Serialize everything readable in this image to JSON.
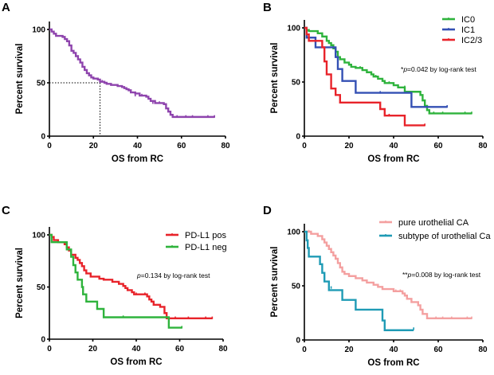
{
  "chart_data": [
    {
      "type": "line",
      "panel": "A",
      "title": "",
      "xlabel": "OS from RC",
      "ylabel": "Percent survival",
      "xlim": [
        0,
        80
      ],
      "ylim": [
        0,
        100
      ],
      "xticks": [
        "0",
        "20",
        "40",
        "60",
        "80"
      ],
      "yticks": [
        "0",
        "50",
        "100"
      ],
      "median_line": {
        "x": 23,
        "y": 50
      },
      "legend": [],
      "annotation": "",
      "series": [
        {
          "name": "All patients",
          "color": "#8e44ad",
          "steps": [
            [
              0,
              100
            ],
            [
              1,
              98
            ],
            [
              2,
              96
            ],
            [
              3,
              94
            ],
            [
              6,
              93
            ],
            [
              7,
              91
            ],
            [
              8,
              89
            ],
            [
              9,
              85
            ],
            [
              10,
              80
            ],
            [
              11,
              78
            ],
            [
              12,
              75
            ],
            [
              13,
              72
            ],
            [
              14,
              69
            ],
            [
              15,
              65
            ],
            [
              16,
              62
            ],
            [
              17,
              59
            ],
            [
              18,
              57
            ],
            [
              19,
              55
            ],
            [
              20,
              54
            ],
            [
              22,
              53
            ],
            [
              23,
              51
            ],
            [
              25,
              50
            ],
            [
              26,
              49
            ],
            [
              28,
              48
            ],
            [
              31,
              47
            ],
            [
              33,
              46
            ],
            [
              34,
              45
            ],
            [
              35,
              44
            ],
            [
              36,
              43
            ],
            [
              37,
              41
            ],
            [
              39,
              40
            ],
            [
              41,
              38
            ],
            [
              44,
              37
            ],
            [
              45,
              35
            ],
            [
              46,
              33
            ],
            [
              48,
              31
            ],
            [
              52,
              30
            ],
            [
              53,
              26
            ],
            [
              54,
              23
            ],
            [
              55,
              20
            ],
            [
              56,
              18
            ]
          ],
          "end": 75,
          "censors": [
            [
              24,
              51
            ],
            [
              31,
              47
            ],
            [
              39,
              38
            ],
            [
              42,
              38
            ],
            [
              47,
              31
            ],
            [
              50,
              31
            ],
            [
              58,
              18
            ],
            [
              62,
              18
            ],
            [
              65,
              18
            ],
            [
              72,
              18
            ],
            [
              75,
              18
            ]
          ]
        }
      ]
    },
    {
      "type": "line",
      "panel": "B",
      "xlabel": "OS from RC",
      "ylabel": "Percent survival",
      "xlim": [
        0,
        80
      ],
      "ylim": [
        0,
        100
      ],
      "xticks": [
        "0",
        "20",
        "40",
        "60",
        "80"
      ],
      "yticks": [
        "0",
        "50",
        "100"
      ],
      "legend": [
        {
          "label": "IC0",
          "color": "#2eb33c"
        },
        {
          "label": "IC1",
          "color": "#3450b4"
        },
        {
          "label": "IC2/3",
          "color": "#e8232a"
        }
      ],
      "annotation_prefix": "*",
      "annotation_p": "p",
      "annotation_rest": "=0.042 by log-rank test",
      "series": [
        {
          "name": "IC0",
          "color": "#2eb33c",
          "steps": [
            [
              0,
              100
            ],
            [
              1,
              98
            ],
            [
              2,
              97
            ],
            [
              6,
              95
            ],
            [
              8,
              92
            ],
            [
              10,
              88
            ],
            [
              11,
              86
            ],
            [
              12,
              84
            ],
            [
              13,
              81
            ],
            [
              14,
              78
            ],
            [
              15,
              73
            ],
            [
              16,
              71
            ],
            [
              18,
              68
            ],
            [
              20,
              66
            ],
            [
              21,
              64
            ],
            [
              23,
              63
            ],
            [
              26,
              61
            ],
            [
              28,
              59
            ],
            [
              30,
              57
            ],
            [
              31,
              55
            ],
            [
              33,
              53
            ],
            [
              35,
              51
            ],
            [
              36,
              49
            ],
            [
              40,
              47
            ],
            [
              42,
              45
            ],
            [
              45,
              41
            ],
            [
              52,
              38
            ],
            [
              53,
              33
            ],
            [
              54,
              28
            ],
            [
              55,
              24
            ],
            [
              56,
              21
            ]
          ],
          "end": 75,
          "censors": [
            [
              25,
              63
            ],
            [
              32,
              55
            ],
            [
              38,
              49
            ],
            [
              42,
              45
            ],
            [
              45,
              45
            ],
            [
              58,
              21
            ],
            [
              62,
              21
            ],
            [
              72,
              21
            ],
            [
              75,
              21
            ]
          ]
        },
        {
          "name": "IC1",
          "color": "#3450b4",
          "steps": [
            [
              0,
              100
            ],
            [
              1,
              91
            ],
            [
              5,
              82
            ],
            [
              14,
              73
            ],
            [
              15,
              62
            ],
            [
              17,
              51
            ],
            [
              23,
              40
            ],
            [
              48,
              27
            ]
          ],
          "end": 64,
          "censors": [
            [
              34,
              40
            ],
            [
              64,
              27
            ]
          ]
        },
        {
          "name": "IC2/3",
          "color": "#e8232a",
          "steps": [
            [
              0,
              100
            ],
            [
              1,
              94
            ],
            [
              2,
              88
            ],
            [
              8,
              82
            ],
            [
              9,
              69
            ],
            [
              10,
              57
            ],
            [
              12,
              44
            ],
            [
              14,
              38
            ],
            [
              16,
              31
            ],
            [
              34,
              25
            ],
            [
              36,
              19
            ],
            [
              45,
              10
            ]
          ],
          "end": 54,
          "censors": [
            [
              38,
              19
            ],
            [
              54,
              10
            ]
          ]
        }
      ]
    },
    {
      "type": "line",
      "panel": "C",
      "xlabel": "OS from RC",
      "ylabel": "Percent survival",
      "xlim": [
        0,
        80
      ],
      "ylim": [
        0,
        100
      ],
      "xticks": [
        "0",
        "20",
        "40",
        "60",
        "80"
      ],
      "yticks": [
        "0",
        "50",
        "100"
      ],
      "legend": [
        {
          "label": "PD-L1 pos",
          "color": "#e8232a"
        },
        {
          "label": "PD-L1 neg",
          "color": "#2eb33c"
        }
      ],
      "annotation_prefix": "",
      "annotation_p": "p",
      "annotation_rest": "=0.134 by log-rank test",
      "series": [
        {
          "name": "PD-L1 pos",
          "color": "#e8232a",
          "steps": [
            [
              0,
              100
            ],
            [
              1,
              98
            ],
            [
              2,
              95
            ],
            [
              4,
              93
            ],
            [
              7,
              91
            ],
            [
              8,
              88
            ],
            [
              9,
              85
            ],
            [
              10,
              81
            ],
            [
              12,
              78
            ],
            [
              13,
              76
            ],
            [
              14,
              73
            ],
            [
              15,
              70
            ],
            [
              16,
              66
            ],
            [
              17,
              63
            ],
            [
              19,
              60
            ],
            [
              23,
              58
            ],
            [
              25,
              57
            ],
            [
              29,
              55
            ],
            [
              32,
              53
            ],
            [
              34,
              51
            ],
            [
              35,
              49
            ],
            [
              36,
              47
            ],
            [
              38,
              45
            ],
            [
              39,
              43
            ],
            [
              45,
              41
            ],
            [
              46,
              38
            ],
            [
              47,
              36
            ],
            [
              48,
              33
            ],
            [
              51,
              31
            ],
            [
              53,
              25
            ],
            [
              54,
              20
            ]
          ],
          "end": 75,
          "censors": [
            [
              25,
              57
            ],
            [
              40,
              43
            ],
            [
              44,
              43
            ],
            [
              58,
              20
            ],
            [
              64,
              20
            ],
            [
              72,
              20
            ],
            [
              75,
              20
            ]
          ]
        },
        {
          "name": "PD-L1 neg",
          "color": "#2eb33c",
          "steps": [
            [
              0,
              100
            ],
            [
              1,
              93
            ],
            [
              8,
              86
            ],
            [
              10,
              79
            ],
            [
              11,
              71
            ],
            [
              12,
              64
            ],
            [
              13,
              57
            ],
            [
              15,
              50
            ],
            [
              15.5,
              43
            ],
            [
              17,
              36
            ],
            [
              22,
              29
            ],
            [
              25,
              21
            ],
            [
              55,
              11
            ]
          ],
          "end": 61,
          "censors": [
            [
              34,
              21
            ],
            [
              61,
              11
            ]
          ]
        }
      ]
    },
    {
      "type": "line",
      "panel": "D",
      "xlabel": "OS from RC",
      "ylabel": "Percent survival",
      "xlim": [
        0,
        80
      ],
      "ylim": [
        0,
        100
      ],
      "xticks": [
        "0",
        "20",
        "40",
        "60",
        "80"
      ],
      "yticks": [
        "0",
        "50",
        "100"
      ],
      "legend": [
        {
          "label": "pure urothelial CA",
          "color": "#f4a0a0"
        },
        {
          "label": "subtype of urothelial Ca",
          "color": "#1f9bb5"
        }
      ],
      "annotation_prefix": "**",
      "annotation_p": "p",
      "annotation_rest": "=0.008 by log-rank test",
      "series": [
        {
          "name": "pure urothelial CA",
          "color": "#f4a0a0",
          "steps": [
            [
              0,
              100
            ],
            [
              3,
              98
            ],
            [
              6,
              96
            ],
            [
              8,
              93
            ],
            [
              9,
              90
            ],
            [
              10,
              87
            ],
            [
              11,
              84
            ],
            [
              12,
              81
            ],
            [
              13,
              78
            ],
            [
              14,
              75
            ],
            [
              15,
              71
            ],
            [
              16,
              67
            ],
            [
              17,
              63
            ],
            [
              18,
              61
            ],
            [
              20,
              59
            ],
            [
              23,
              57
            ],
            [
              26,
              55
            ],
            [
              28,
              53
            ],
            [
              31,
              51
            ],
            [
              33,
              49
            ],
            [
              35,
              47
            ],
            [
              40,
              45
            ],
            [
              44,
              43
            ],
            [
              45,
              41
            ],
            [
              46,
              38
            ],
            [
              48,
              35
            ],
            [
              51,
              32
            ],
            [
              52,
              28
            ],
            [
              53,
              24
            ],
            [
              55,
              20
            ]
          ],
          "end": 75,
          "censors": [
            [
              2,
              100
            ],
            [
              26,
              55
            ],
            [
              41,
              45
            ],
            [
              43,
              45
            ],
            [
              59,
              20
            ],
            [
              62,
              20
            ],
            [
              66,
              20
            ],
            [
              73,
              20
            ],
            [
              75,
              20
            ]
          ]
        },
        {
          "name": "subtype of urothelial Ca",
          "color": "#1f9bb5",
          "steps": [
            [
              0,
              100
            ],
            [
              1,
              92
            ],
            [
              1.5,
              85
            ],
            [
              2,
              77
            ],
            [
              7,
              70
            ],
            [
              8,
              62
            ],
            [
              9,
              54
            ],
            [
              11,
              46
            ],
            [
              17,
              37
            ],
            [
              23,
              28
            ],
            [
              35,
              18
            ],
            [
              36,
              9
            ]
          ],
          "end": 49,
          "censors": [
            [
              12,
              48
            ],
            [
              49,
              10
            ]
          ]
        }
      ]
    }
  ]
}
